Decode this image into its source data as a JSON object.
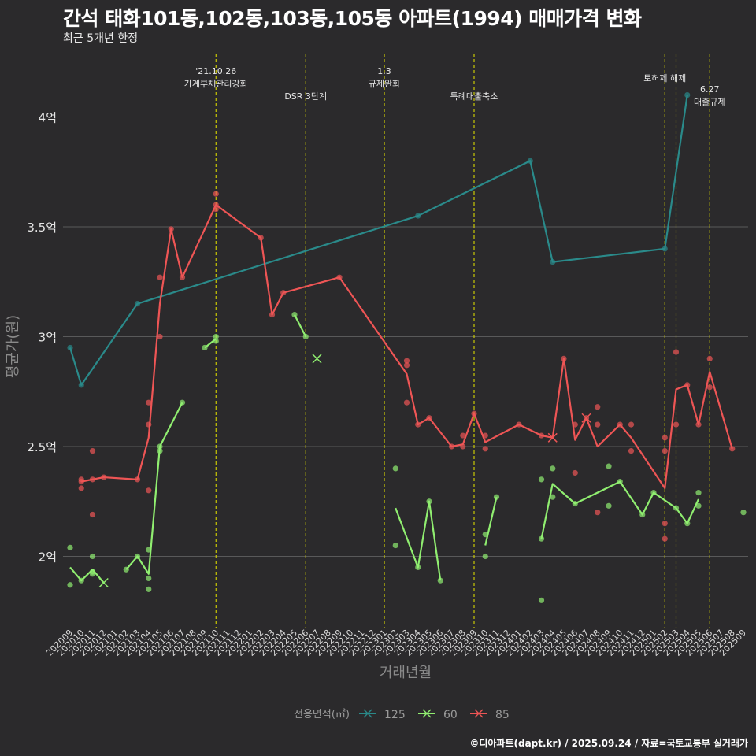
{
  "title": "간석 태화101동,102동,103동,105동 아파트(1994) 매매가격 변화",
  "subtitle": "최근 5개년 한정",
  "caption": "©디아파트(dapt.kr) / 2025.09.24 / 자료=국토교통부 실거래가",
  "colors": {
    "125": "#2a8a8a",
    "60": "#90ee70",
    "85": "#ee5555",
    "vline": "#d8d800",
    "grid": "#6a6a6a"
  },
  "chart_data": {
    "type": "line",
    "xlabel": "거래년월",
    "ylabel": "평균가(원)",
    "ylim": [
      1.7,
      4.4
    ],
    "yticks": [
      {
        "v": 2,
        "label": "2억"
      },
      {
        "v": 2.5,
        "label": "2.5억"
      },
      {
        "v": 3,
        "label": "3억"
      },
      {
        "v": 3.5,
        "label": "3.5억"
      },
      {
        "v": 4,
        "label": "4억"
      }
    ],
    "x_categories": [
      "202009",
      "202010",
      "202011",
      "202012",
      "202101",
      "202102",
      "202103",
      "202104",
      "202105",
      "202106",
      "202107",
      "202108",
      "202109",
      "202110",
      "202111",
      "202112",
      "202201",
      "202202",
      "202203",
      "202204",
      "202205",
      "202206",
      "202207",
      "202208",
      "202209",
      "202210",
      "202211",
      "202212",
      "202301",
      "202302",
      "202303",
      "202304",
      "202305",
      "202306",
      "202307",
      "202308",
      "202309",
      "202310",
      "202311",
      "202312",
      "202401",
      "202402",
      "202403",
      "202404",
      "202405",
      "202406",
      "202407",
      "202408",
      "202409",
      "202410",
      "202411",
      "202412",
      "202501",
      "202502",
      "202503",
      "202504",
      "202505",
      "202506",
      "202507",
      "202508",
      "202509"
    ],
    "legend": {
      "title": "전용면적(㎡)",
      "position": "bottom",
      "items": [
        "125",
        "60",
        "85"
      ]
    },
    "annotations": [
      {
        "x": 13,
        "lines": [
          "'21.10.26",
          "가계부채관리강화"
        ],
        "level": "high"
      },
      {
        "x": 21,
        "lines": [
          "DSR 3단계"
        ],
        "level": "low"
      },
      {
        "x": 28,
        "lines": [
          "1.3",
          "규제완화"
        ],
        "level": "high"
      },
      {
        "x": 36,
        "lines": [
          "특례대출축소"
        ],
        "level": "low"
      },
      {
        "x": 53,
        "lines": [
          "토허제 해제"
        ],
        "level": "mid"
      },
      {
        "x": 54,
        "lines": [],
        "level": "none"
      },
      {
        "x": 57,
        "lines": [
          "6.27",
          "대출규제"
        ],
        "level": "low2"
      }
    ],
    "series": [
      {
        "name": "125",
        "line": [
          [
            0,
            2.95
          ],
          [
            1,
            2.78
          ],
          [
            6,
            3.15
          ],
          [
            31,
            3.55
          ],
          [
            41,
            3.8
          ],
          [
            43,
            3.34
          ],
          [
            53,
            3.4
          ],
          [
            55,
            4.1
          ]
        ],
        "points": [
          [
            0,
            2.95
          ],
          [
            1,
            2.78
          ],
          [
            6,
            3.15
          ],
          [
            31,
            3.55
          ],
          [
            41,
            3.8
          ],
          [
            43,
            3.34
          ],
          [
            53,
            3.4
          ],
          [
            55,
            4.1
          ]
        ],
        "crosses": []
      },
      {
        "name": "60",
        "line": [
          [
            0,
            1.95
          ],
          [
            1,
            1.89
          ],
          [
            2,
            1.94
          ],
          [
            3,
            1.88
          ],
          [
            null,
            null
          ],
          [
            5,
            1.94
          ],
          [
            6,
            2.0
          ],
          [
            7,
            1.92
          ],
          [
            8,
            2.5
          ],
          [
            10,
            2.7
          ],
          [
            null,
            null
          ],
          [
            12,
            2.95
          ],
          [
            13,
            2.99
          ],
          [
            null,
            null
          ],
          [
            20,
            3.1
          ],
          [
            21,
            3.0
          ],
          [
            null,
            null
          ],
          [
            29,
            2.22
          ],
          [
            31,
            1.95
          ],
          [
            32,
            2.25
          ],
          [
            33,
            1.89
          ],
          [
            null,
            null
          ],
          [
            37,
            2.05
          ],
          [
            38,
            2.27
          ],
          [
            null,
            null
          ],
          [
            42,
            2.08
          ],
          [
            43,
            2.33
          ],
          [
            45,
            2.24
          ],
          [
            49,
            2.34
          ],
          [
            51,
            2.19
          ],
          [
            52,
            2.29
          ],
          [
            54,
            2.22
          ],
          [
            55,
            2.15
          ],
          [
            56,
            2.26
          ]
        ],
        "points": [
          [
            0,
            2.04
          ],
          [
            0,
            1.87
          ],
          [
            1,
            1.89
          ],
          [
            2,
            2.0
          ],
          [
            2,
            1.92
          ],
          [
            2,
            1.93
          ],
          [
            5,
            1.94
          ],
          [
            6,
            2.0
          ],
          [
            7,
            2.03
          ],
          [
            7,
            1.9
          ],
          [
            7,
            1.85
          ],
          [
            8,
            2.5
          ],
          [
            8,
            2.48
          ],
          [
            10,
            2.7
          ],
          [
            12,
            2.95
          ],
          [
            13,
            2.98
          ],
          [
            13,
            3.0
          ],
          [
            20,
            3.1
          ],
          [
            21,
            3.0
          ],
          [
            29,
            2.4
          ],
          [
            29,
            2.05
          ],
          [
            31,
            1.95
          ],
          [
            32,
            2.25
          ],
          [
            33,
            1.89
          ],
          [
            37,
            2.1
          ],
          [
            37,
            2.0
          ],
          [
            38,
            2.27
          ],
          [
            42,
            2.35
          ],
          [
            42,
            2.08
          ],
          [
            42,
            1.8
          ],
          [
            43,
            2.4
          ],
          [
            43,
            2.27
          ],
          [
            45,
            2.24
          ],
          [
            48,
            2.41
          ],
          [
            48,
            2.23
          ],
          [
            49,
            2.34
          ],
          [
            51,
            2.19
          ],
          [
            52,
            2.29
          ],
          [
            54,
            2.22
          ],
          [
            55,
            2.15
          ],
          [
            56,
            2.29
          ],
          [
            56,
            2.23
          ],
          [
            60,
            2.2
          ]
        ],
        "crosses": [
          [
            3,
            1.88
          ],
          [
            22,
            2.9
          ]
        ]
      },
      {
        "name": "85",
        "line": [
          [
            1,
            2.34
          ],
          [
            3,
            2.36
          ],
          [
            6,
            2.35
          ],
          [
            7,
            2.54
          ],
          [
            8,
            3.15
          ],
          [
            9,
            3.49
          ],
          [
            10,
            3.27
          ],
          [
            13,
            3.6
          ],
          [
            17,
            3.45
          ],
          [
            18,
            3.1
          ],
          [
            19,
            3.2
          ],
          [
            24,
            3.27
          ],
          [
            30,
            2.83
          ],
          [
            31,
            2.6
          ],
          [
            32,
            2.63
          ],
          [
            34,
            2.5
          ],
          [
            35,
            2.51
          ],
          [
            36,
            2.65
          ],
          [
            37,
            2.52
          ],
          [
            40,
            2.6
          ],
          [
            42,
            2.55
          ],
          [
            43,
            2.54
          ],
          [
            44,
            2.9
          ],
          [
            45,
            2.53
          ],
          [
            46,
            2.63
          ],
          [
            47,
            2.5
          ],
          [
            49,
            2.6
          ],
          [
            50,
            2.54
          ],
          [
            53,
            2.31
          ],
          [
            54,
            2.76
          ],
          [
            55,
            2.78
          ],
          [
            56,
            2.6
          ],
          [
            57,
            2.84
          ],
          [
            59,
            2.49
          ]
        ],
        "points": [
          [
            1,
            2.35
          ],
          [
            1,
            2.34
          ],
          [
            1,
            2.31
          ],
          [
            2,
            2.48
          ],
          [
            2,
            2.35
          ],
          [
            2,
            2.19
          ],
          [
            3,
            2.36
          ],
          [
            6,
            2.35
          ],
          [
            7,
            2.7
          ],
          [
            7,
            2.6
          ],
          [
            7,
            2.3
          ],
          [
            8,
            3.27
          ],
          [
            8,
            3.0
          ],
          [
            9,
            3.49
          ],
          [
            10,
            3.27
          ],
          [
            13,
            3.65
          ],
          [
            13,
            3.6
          ],
          [
            13,
            3.58
          ],
          [
            17,
            3.45
          ],
          [
            18,
            3.1
          ],
          [
            19,
            3.2
          ],
          [
            24,
            3.27
          ],
          [
            30,
            2.89
          ],
          [
            30,
            2.87
          ],
          [
            30,
            2.7
          ],
          [
            31,
            2.6
          ],
          [
            32,
            2.63
          ],
          [
            34,
            2.5
          ],
          [
            35,
            2.55
          ],
          [
            35,
            2.5
          ],
          [
            36,
            2.65
          ],
          [
            37,
            2.55
          ],
          [
            37,
            2.49
          ],
          [
            40,
            2.6
          ],
          [
            42,
            2.55
          ],
          [
            44,
            2.9
          ],
          [
            45,
            2.6
          ],
          [
            45,
            2.38
          ],
          [
            46,
            2.63
          ],
          [
            47,
            2.68
          ],
          [
            47,
            2.6
          ],
          [
            47,
            2.2
          ],
          [
            49,
            2.6
          ],
          [
            50,
            2.6
          ],
          [
            50,
            2.48
          ],
          [
            53,
            2.54
          ],
          [
            53,
            2.48
          ],
          [
            53,
            2.15
          ],
          [
            53,
            2.08
          ],
          [
            54,
            2.93
          ],
          [
            54,
            2.6
          ],
          [
            55,
            2.78
          ],
          [
            56,
            2.6
          ],
          [
            57,
            2.9
          ],
          [
            57,
            2.77
          ],
          [
            59,
            2.49
          ]
        ],
        "crosses": [
          [
            43,
            2.54
          ],
          [
            46,
            2.63
          ]
        ]
      }
    ]
  }
}
